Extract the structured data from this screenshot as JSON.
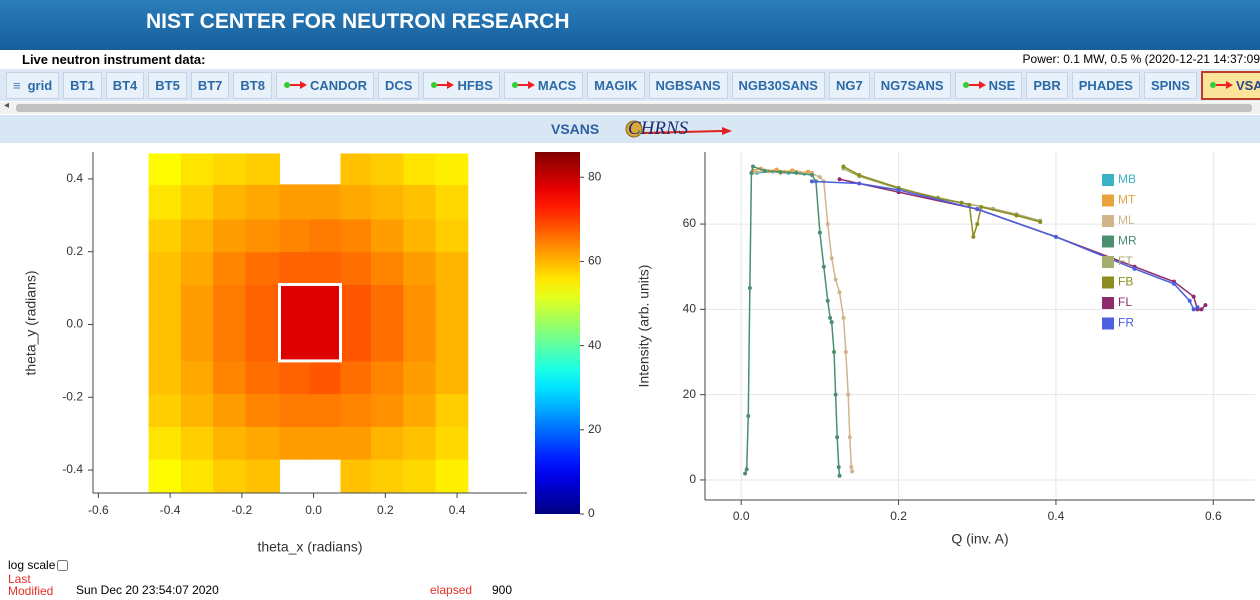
{
  "header": {
    "title": "NIST CENTER FOR NEUTRON RESEARCH",
    "subtitle": "Live neutron instrument data:",
    "power": "Power: 0.1 MW, 0.5 % (2020-12-21 14:37:09"
  },
  "tabs": [
    {
      "label": "grid",
      "menu": true
    },
    {
      "label": "BT1"
    },
    {
      "label": "BT4"
    },
    {
      "label": "BT5"
    },
    {
      "label": "BT7"
    },
    {
      "label": "BT8"
    },
    {
      "label": "CANDOR",
      "arrow": true
    },
    {
      "label": "DCS"
    },
    {
      "label": "HFBS",
      "arrow": true
    },
    {
      "label": "MACS",
      "arrow": true
    },
    {
      "label": "MAGIK"
    },
    {
      "label": "NGBSANS"
    },
    {
      "label": "NGB30SANS"
    },
    {
      "label": "NG7"
    },
    {
      "label": "NG7SANS"
    },
    {
      "label": "NSE",
      "arrow": true
    },
    {
      "label": "PBR"
    },
    {
      "label": "PHADES"
    },
    {
      "label": "SPINS"
    },
    {
      "label": "VSANS",
      "arrow": true,
      "selected": true
    }
  ],
  "instrument": {
    "title": "VSANS",
    "logo": "CHRNS"
  },
  "chart_data": [
    {
      "type": "heatmap",
      "xlabel": "theta_x (radians)",
      "ylabel": "theta_y (radians)",
      "xlim": [
        -0.615,
        0.595
      ],
      "ylim": [
        -0.463,
        0.474
      ],
      "xticks": [
        -0.6,
        -0.4,
        -0.2,
        {
          "value": 0,
          "label": "0.0"
        },
        0.2,
        0.4
      ],
      "yticks": [
        0.4,
        0.2,
        {
          "value": 0,
          "label": "0.0"
        },
        -0.2,
        -0.4
      ],
      "x": [
        -0.46,
        -0.37,
        -0.28,
        -0.19,
        -0.095,
        -0.01,
        0.075,
        0.16,
        0.25,
        0.34,
        0.43
      ],
      "y": [
        -0.46,
        -0.37,
        -0.28,
        -0.19,
        -0.1,
        0.0,
        0.11,
        0.2,
        0.29,
        0.385,
        0.47
      ],
      "z": [
        [
          54,
          56,
          58,
          59,
          null,
          null,
          59,
          58,
          57,
          55
        ],
        [
          56,
          58,
          60,
          61,
          62,
          62,
          62,
          60,
          59,
          57
        ],
        [
          58,
          60,
          62,
          64,
          65,
          65,
          64,
          63,
          61,
          58
        ],
        [
          59,
          61,
          64,
          66,
          67,
          68,
          66,
          64,
          62,
          60
        ],
        [
          59,
          62,
          65,
          67,
          78,
          78,
          68,
          66,
          63,
          60
        ],
        [
          59,
          62,
          65,
          67,
          78,
          78,
          68,
          66,
          63,
          60
        ],
        [
          59,
          61,
          64,
          66,
          67,
          67,
          66,
          64,
          62,
          60
        ],
        [
          58,
          60,
          62,
          63,
          64,
          65,
          64,
          62,
          60,
          58
        ],
        [
          56,
          58,
          60,
          61,
          62,
          62,
          61,
          60,
          59,
          57
        ],
        [
          54,
          56,
          57,
          58,
          null,
          null,
          59,
          58,
          56,
          55
        ]
      ],
      "colormap": "jet",
      "zlim": [
        0,
        86
      ],
      "zticks": [
        0,
        20,
        40,
        60,
        80
      ]
    },
    {
      "type": "line",
      "xlabel": "Q (inv. A)",
      "ylabel": "Intensity (arb. units)",
      "xlim": [
        -0.046,
        0.653
      ],
      "ylim": [
        -4.7,
        76.9
      ],
      "xticks": [
        {
          "value": 0,
          "label": "0.0"
        },
        0.2,
        0.4,
        0.6
      ],
      "yticks": [
        0,
        20,
        40,
        60
      ],
      "grid": true,
      "legend": "top-right",
      "series": [
        {
          "name": "MB",
          "color": "#3bb3c3",
          "x": [
            0.02,
            0.04,
            0.06,
            0.08
          ],
          "values": [
            72,
            72.3,
            72,
            71.8
          ]
        },
        {
          "name": "MT",
          "color": "#e8a33d",
          "x": [
            0.015,
            0.025,
            0.035,
            0.045,
            0.055,
            0.065,
            0.075,
            0.085,
            0.09
          ],
          "values": [
            72.5,
            73,
            72.4,
            72.8,
            72.2,
            72.6,
            72,
            72.3,
            72
          ]
        },
        {
          "name": "ML",
          "color": "#d2b48c",
          "x": [
            0.015,
            0.03,
            0.05,
            0.07,
            0.09,
            0.1,
            0.105,
            0.11,
            0.115,
            0.12,
            0.125,
            0.13,
            0.133,
            0.136,
            0.138,
            0.14,
            0.141
          ],
          "values": [
            72,
            72.5,
            72,
            72.3,
            71.8,
            71,
            70,
            60,
            52,
            47,
            44,
            38,
            30,
            20,
            10,
            3,
            2
          ]
        },
        {
          "name": "MR",
          "color": "#4a8f70",
          "x": [
            0.005,
            0.007,
            0.009,
            0.011,
            0.013,
            0.015,
            0.03,
            0.05,
            0.07,
            0.09,
            0.095,
            0.1,
            0.105,
            0.11,
            0.113,
            0.115,
            0.118,
            0.12,
            0.122,
            0.124,
            0.125
          ],
          "values": [
            1.5,
            2.5,
            15,
            45,
            72,
            73.5,
            72.5,
            72.2,
            72,
            71.5,
            70,
            58,
            50,
            42,
            38,
            37,
            30,
            20,
            10,
            3,
            1
          ]
        },
        {
          "name": "FT",
          "color": "#a7ad6e",
          "x": [
            0.13,
            0.15,
            0.2,
            0.25,
            0.28,
            0.32,
            0.35,
            0.38
          ],
          "values": [
            73,
            71.2,
            68.3,
            66.2,
            65,
            63.6,
            62.3,
            60.8
          ]
        },
        {
          "name": "FB",
          "color": "#8d8c1e",
          "x": [
            0.13,
            0.15,
            0.2,
            0.25,
            0.28,
            0.29,
            0.295,
            0.3,
            0.305,
            0.35,
            0.38
          ],
          "values": [
            73.5,
            71.5,
            68.5,
            66,
            65,
            64.5,
            57,
            60,
            64,
            62,
            60.5
          ]
        },
        {
          "name": "FL",
          "color": "#8e2b6d",
          "x": [
            0.125,
            0.2,
            0.3,
            0.4,
            0.5,
            0.55,
            0.575,
            0.58,
            0.585,
            0.59
          ],
          "values": [
            70.5,
            67.5,
            63.5,
            57,
            50,
            46.5,
            43,
            40,
            40,
            41
          ]
        },
        {
          "name": "FR",
          "color": "#4b5fe0",
          "x": [
            0.09,
            0.15,
            0.2,
            0.3,
            0.4,
            0.5,
            0.55,
            0.57,
            0.575,
            0.58
          ],
          "values": [
            70,
            69.5,
            68,
            63.5,
            57,
            49.5,
            46,
            42,
            40,
            40.5
          ]
        }
      ]
    }
  ],
  "footer": {
    "log_scale": "log scale",
    "last_modified": "Last Modified",
    "date": "Sun Dec 20 23:54:07 2020",
    "elapsed_label": "elapsed",
    "elapsed": 900
  }
}
